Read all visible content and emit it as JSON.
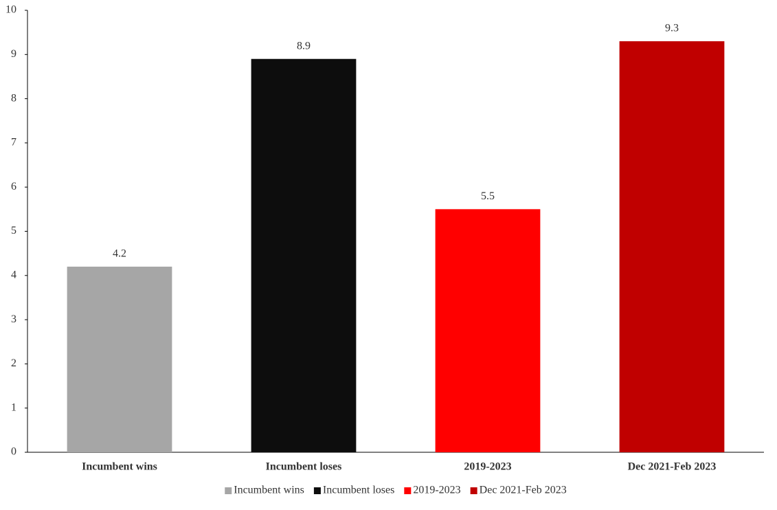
{
  "chart_data": {
    "type": "bar",
    "categories": [
      "Incumbent wins",
      "Incumbent loses",
      "2019-2023",
      "Dec 2021-Feb 2023"
    ],
    "values": [
      4.2,
      8.9,
      5.5,
      9.3
    ],
    "value_labels": [
      "4.2",
      "8.9",
      "5.5",
      "9.3"
    ],
    "colors": [
      "#a6a6a6",
      "#0d0d0d",
      "#ff0000",
      "#c00000"
    ],
    "ylim": [
      0,
      10
    ],
    "yticks": [
      0,
      1,
      2,
      3,
      4,
      5,
      6,
      7,
      8,
      9,
      10
    ],
    "grid": false,
    "legend": "bottom"
  }
}
